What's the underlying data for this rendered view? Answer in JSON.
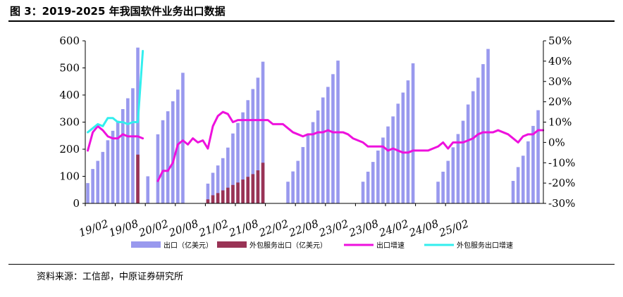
{
  "title": "图 3：2019-2025 年我国软件业务出口数据",
  "source": "资料来源：工信部，中原证券研究所",
  "chart_data": {
    "type": "bar",
    "start": "2019-02",
    "left_ylim": [
      0,
      600
    ],
    "left_ticks": [
      "0",
      "100",
      "200",
      "300",
      "400",
      "500",
      "600"
    ],
    "right_ylim": [
      -30,
      50
    ],
    "right_ticks": [
      "-30%",
      "-20%",
      "-10%",
      "0%",
      "10%",
      "20%",
      "30%",
      "40%",
      "50%"
    ],
    "x_tick_labels": [
      "19/02",
      "19/08",
      "20/02",
      "20/08",
      "21/02",
      "21/08",
      "22/02",
      "22/08",
      "23/02",
      "23/08",
      "24/02",
      "24/08",
      "25/02"
    ],
    "legend": "bottom",
    "colors": {
      "export": "#9999ee",
      "outsourcing": "#993355",
      "export_growth": "#ee11dd",
      "outsourcing_growth": "#33eeee"
    },
    "series": [
      {
        "name": "出口（亿美元）",
        "kind": "bar",
        "axis": "left",
        "values": [
          75,
          127,
          157,
          190,
          233,
          268,
          305,
          348,
          388,
          425,
          575,
          null,
          100,
          null,
          255,
          307,
          340,
          377,
          420,
          482,
          null,
          null,
          null,
          null,
          73,
          113,
          140,
          167,
          206,
          258,
          297,
          336,
          381,
          422,
          464,
          523,
          null,
          null,
          null,
          null,
          80,
          118,
          157,
          208,
          256,
          300,
          343,
          391,
          430,
          477,
          527,
          null,
          null,
          null,
          null,
          80,
          117,
          153,
          195,
          243,
          284,
          321,
          368,
          409,
          454,
          517,
          null,
          null,
          null,
          null,
          80,
          117,
          157,
          207,
          256,
          305,
          365,
          414,
          464,
          514,
          570,
          null,
          null,
          null,
          null,
          83,
          134,
          176,
          229,
          286,
          344
        ]
      },
      {
        "name": "外包服务出口（亿美元）",
        "kind": "bar",
        "axis": "left",
        "values": [
          null,
          null,
          null,
          null,
          null,
          null,
          null,
          null,
          null,
          null,
          180,
          null,
          null,
          null,
          null,
          null,
          null,
          null,
          null,
          null,
          null,
          null,
          null,
          null,
          15,
          30,
          38,
          48,
          58,
          68,
          77,
          88,
          98,
          108,
          122,
          150,
          null,
          null,
          null,
          null,
          null,
          null,
          null,
          null,
          null,
          null,
          null,
          null,
          null,
          null,
          null,
          null,
          null,
          null,
          null,
          null,
          null,
          null,
          null,
          null,
          null,
          null,
          null,
          null,
          null,
          null,
          null,
          null,
          null,
          null,
          null,
          null,
          null,
          null,
          null,
          null,
          null,
          null,
          null,
          null,
          null,
          null,
          null,
          null,
          null,
          null,
          null,
          null,
          null,
          null,
          null
        ]
      },
      {
        "name": "出口增速",
        "kind": "line",
        "axis": "right",
        "values": [
          -4,
          5,
          8,
          6,
          3,
          2,
          2,
          4,
          3,
          3,
          3,
          2,
          null,
          null,
          -19,
          -14,
          -14,
          -10,
          -1,
          1,
          -1,
          2,
          0,
          1,
          -3,
          8,
          13,
          15,
          14,
          10,
          11,
          11,
          11,
          11,
          11,
          11,
          11,
          9,
          9,
          9,
          7,
          5,
          4,
          3,
          4,
          4,
          5,
          5,
          6,
          5,
          5,
          5,
          4,
          2,
          1,
          0,
          -2,
          -2,
          -2,
          -2,
          -4,
          -3,
          -4,
          -5,
          -5,
          -4,
          -4,
          -4,
          -4,
          -3,
          -2,
          0,
          -3,
          0,
          0,
          0,
          1,
          2,
          4,
          5,
          5,
          5,
          6,
          5,
          4,
          2,
          0,
          3,
          4,
          4,
          6,
          6
        ]
      },
      {
        "name": "外包服务出口增速",
        "kind": "line",
        "axis": "right",
        "values": [
          5,
          7,
          9,
          8,
          12,
          12,
          10,
          10,
          9,
          10,
          10,
          45,
          null,
          null,
          null,
          null,
          null,
          null,
          null,
          null,
          null,
          null,
          null,
          null,
          null,
          null,
          null,
          null,
          null,
          null,
          null,
          null,
          null,
          null,
          null,
          null,
          null,
          null,
          null,
          null,
          null,
          null,
          null,
          null,
          null,
          null,
          null,
          null,
          null,
          null,
          null,
          null,
          null,
          null,
          null,
          null,
          null,
          null,
          null,
          null,
          null,
          null,
          null,
          null,
          null,
          null,
          null,
          null,
          null,
          null,
          null,
          null,
          null,
          null,
          null,
          null,
          null,
          null,
          null,
          null,
          null,
          null,
          null,
          null,
          null,
          null,
          null,
          null,
          null,
          null,
          null
        ]
      }
    ]
  }
}
